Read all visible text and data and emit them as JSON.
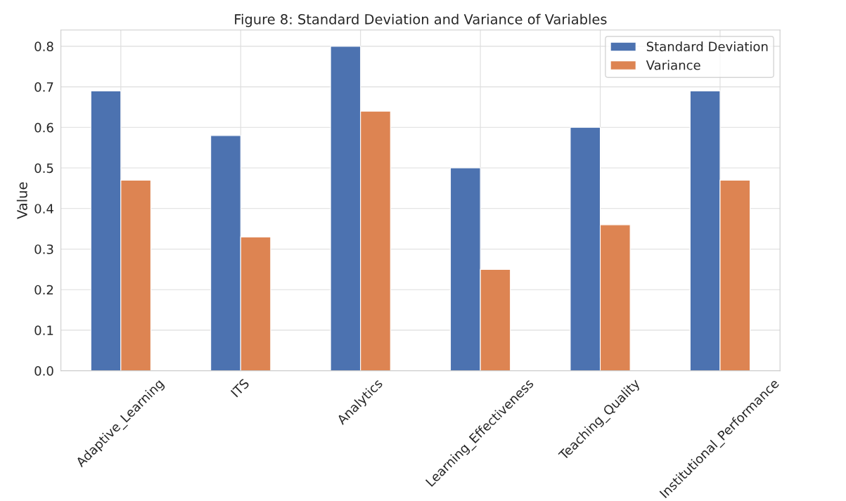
{
  "chart_data": {
    "type": "bar",
    "title": "Figure 8: Standard Deviation and Variance of Variables",
    "ylabel": "Value",
    "categories": [
      "Adaptive_Learning",
      "ITS",
      "Analytics",
      "Learning_Effectiveness",
      "Teaching_Quality",
      "Institutional_Performance"
    ],
    "series": [
      {
        "name": "Standard Deviation",
        "color": "#4c72b0",
        "values": [
          0.69,
          0.58,
          0.8,
          0.5,
          0.6,
          0.69
        ]
      },
      {
        "name": "Variance",
        "color": "#dd8452",
        "values": [
          0.47,
          0.33,
          0.64,
          0.25,
          0.36,
          0.47
        ]
      }
    ],
    "ylim": [
      0,
      0.84
    ],
    "yticks": [
      {
        "value": 0,
        "label": "0.0"
      },
      0.1,
      0.2,
      0.3,
      0.4,
      0.5,
      0.6,
      0.7,
      0.8
    ],
    "grid": true,
    "legend": "top right"
  }
}
